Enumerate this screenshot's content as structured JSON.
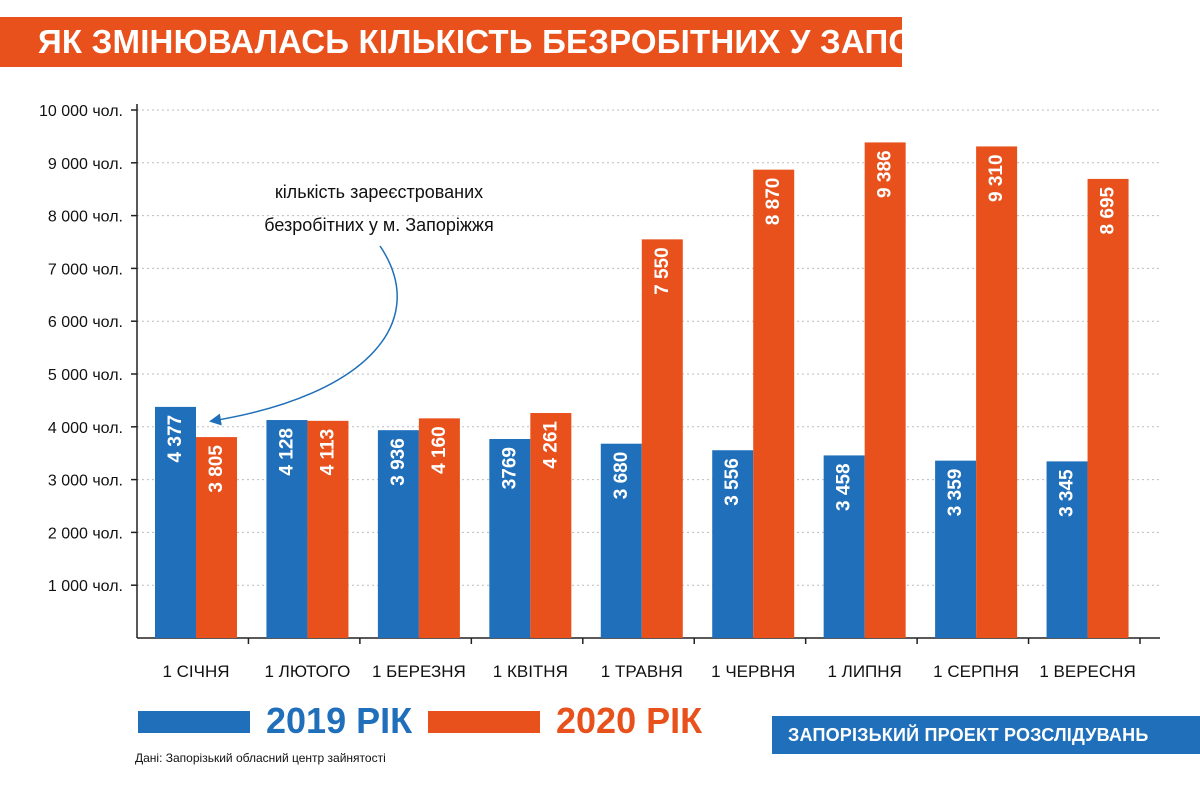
{
  "header": {
    "title": "ЯК ЗМІНЮВАЛАСЬ КІЛЬКІСТЬ БЕЗРОБІТНИХ У ЗАПОРІЖЖІ"
  },
  "chart_data": {
    "type": "bar",
    "categories": [
      "1 СІЧНЯ",
      "1 ЛЮТОГО",
      "1 БЕРЕЗНЯ",
      "1 КВІТНЯ",
      "1 ТРАВНЯ",
      "1 ЧЕРВНЯ",
      "1 ЛИПНЯ",
      "1 СЕРПНЯ",
      "1 ВЕРЕСНЯ"
    ],
    "series": [
      {
        "name": "2019 РІК",
        "color": "#1f6fba",
        "values": [
          4377,
          4128,
          3936,
          3769,
          3680,
          3556,
          3458,
          3359,
          3345
        ],
        "labels": [
          "4 377",
          "4 128",
          "3 936",
          "3769",
          "3 680",
          "3 556",
          "3 458",
          "3 359",
          "3 345"
        ]
      },
      {
        "name": "2020 РІК",
        "color": "#e8501c",
        "values": [
          3805,
          4113,
          4160,
          4261,
          7550,
          8870,
          9386,
          9310,
          8695
        ],
        "labels": [
          "3 805",
          "4 113",
          "4 160",
          "4 261",
          "7 550",
          "8 870",
          "9 386",
          "9 310",
          "8 695"
        ]
      }
    ],
    "ylim": [
      0,
      10000
    ],
    "yticks": [
      {
        "value": 1000,
        "label": "1 000 чол."
      },
      {
        "value": 2000,
        "label": "2 000 чол."
      },
      {
        "value": 3000,
        "label": "3 000 чол."
      },
      {
        "value": 4000,
        "label": "4 000 чол."
      },
      {
        "value": 5000,
        "label": "5 000 чол."
      },
      {
        "value": 6000,
        "label": "6 000 чол."
      },
      {
        "value": 7000,
        "label": "7 000 чол."
      },
      {
        "value": 8000,
        "label": "8 000 чол."
      },
      {
        "value": 9000,
        "label": "9 000 чол."
      },
      {
        "value": 10000,
        "label": "10 000 чол."
      }
    ],
    "grid": true,
    "annotation": {
      "line1": "кількість зареєстрованих",
      "line2": "безробітних у м. Запоріжжя"
    }
  },
  "legend": {
    "item_2019": "2019 РІК",
    "item_2020": "2020 РІК"
  },
  "footer": {
    "source": "Дані: Запорізький обласний центр зайнятості",
    "brand": "ЗАПОРІЗЬКИЙ ПРОЕКТ РОЗСЛІДУВАНЬ"
  }
}
